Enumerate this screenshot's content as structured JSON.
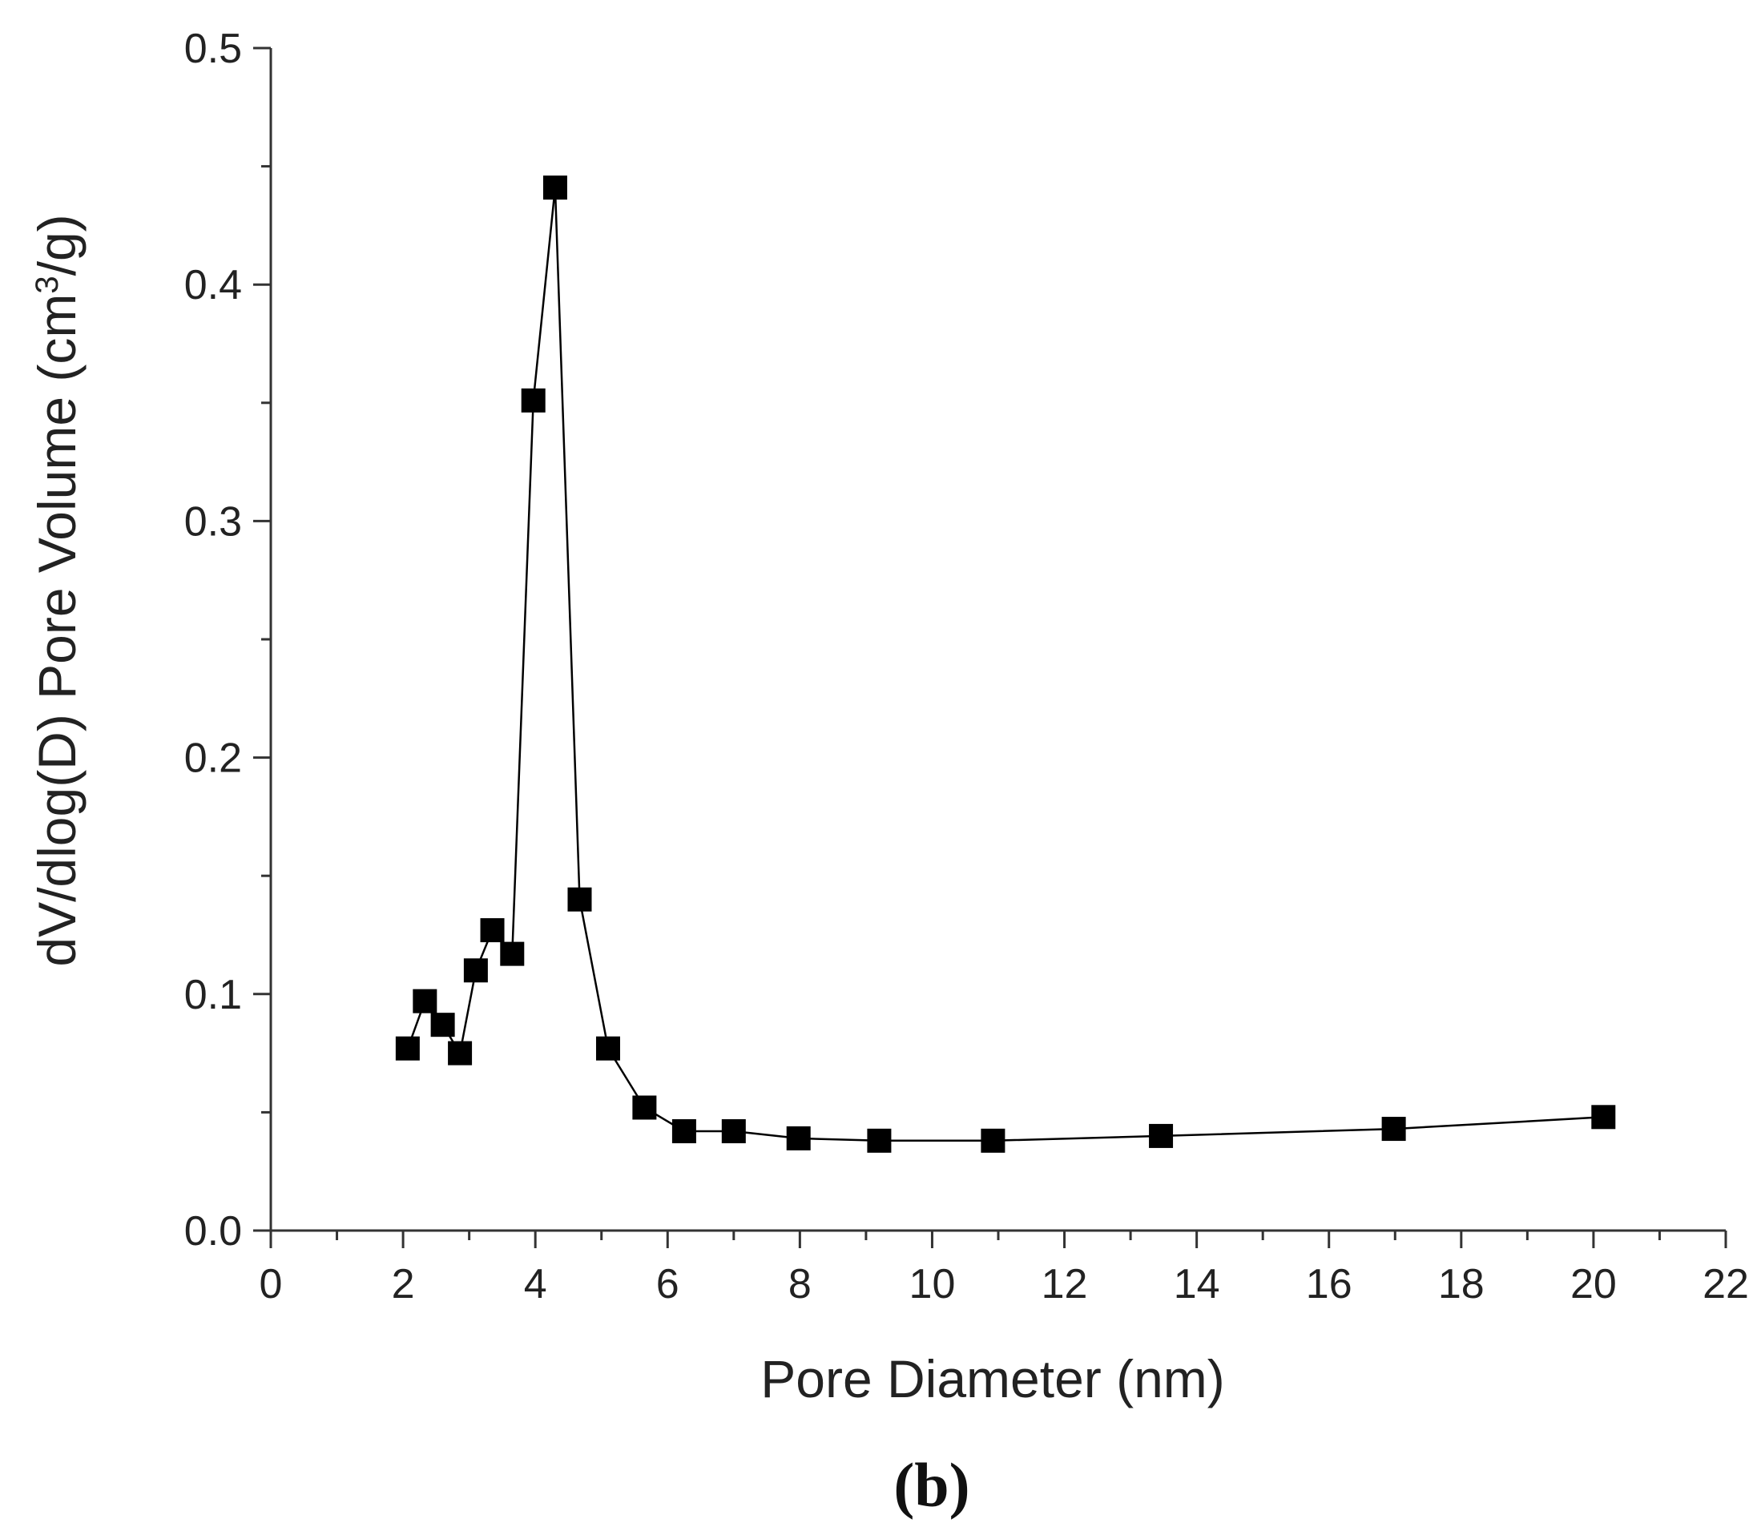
{
  "chart_data": {
    "type": "scatter",
    "xlabel": "Pore Diameter (nm)",
    "ylabel": "dV/dlog(D) Pore Volume (cm",
    "ylabel_sup": "3",
    "ylabel_end": "/g)",
    "panel_label": "(b)",
    "xlim": [
      0,
      22
    ],
    "ylim": [
      0,
      0.5
    ],
    "x_ticks": [
      0,
      2,
      4,
      6,
      8,
      10,
      12,
      14,
      16,
      18,
      20,
      22
    ],
    "y_ticks": [
      0.0,
      0.1,
      0.2,
      0.3,
      0.4,
      0.5
    ],
    "x_tick_labels": [
      "0",
      "2",
      "4",
      "6",
      "8",
      "10",
      "12",
      "14",
      "16",
      "18",
      "20",
      "22"
    ],
    "y_tick_labels": [
      "0.0",
      "0.1",
      "0.2",
      "0.3",
      "0.4",
      "0.5"
    ],
    "grid": false,
    "marker": "square",
    "line_connected": true,
    "color": "#000000",
    "series": [
      {
        "x": [
          2.07,
          2.33,
          2.6,
          2.86,
          3.1,
          3.35,
          3.65,
          3.97,
          4.3,
          4.67,
          5.1,
          5.65,
          6.25,
          7.0,
          7.98,
          9.2,
          10.92,
          13.46,
          16.98,
          20.15
        ],
        "values": [
          0.077,
          0.097,
          0.087,
          0.075,
          0.11,
          0.127,
          0.117,
          0.351,
          0.441,
          0.14,
          0.077,
          0.052,
          0.042,
          0.042,
          0.039,
          0.038,
          0.038,
          0.04,
          0.043,
          0.048
        ]
      }
    ]
  }
}
